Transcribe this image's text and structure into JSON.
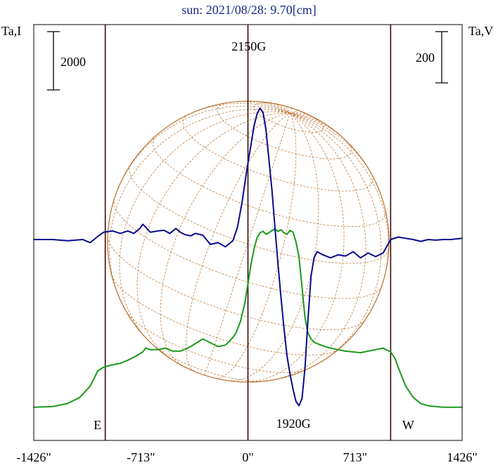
{
  "chart_data": {
    "type": "line",
    "title": "sun: 2021/08/28: 9.70[cm]",
    "left_axis_label": "Ta,I",
    "right_axis_label": "Ta,V",
    "left_scale_bar": "2000",
    "right_scale_bar": "200",
    "x_unit": "arcsec",
    "xlim": [
      -1426,
      1426
    ],
    "x_ticks": [
      {
        "value": -1426,
        "label": "-1426\""
      },
      {
        "value": -713,
        "label": "-713\""
      },
      {
        "value": 0,
        "label": "0\""
      },
      {
        "value": 713,
        "label": "713\""
      },
      {
        "value": 1426,
        "label": "1426\""
      }
    ],
    "vertical_markers": [
      -950,
      0,
      950
    ],
    "limb_labels": {
      "east": "E",
      "west": "W"
    },
    "annotations": [
      {
        "text": "2150G",
        "x": 90,
        "position": "above"
      },
      {
        "text": "1920G",
        "x": 340,
        "position": "below"
      }
    ],
    "colors": {
      "stokes_i": "#1a9a1a",
      "stokes_v": "#0a0a8c",
      "disk": "#b5651d",
      "frame": "#000000",
      "markers": "#3a0a0a",
      "title": "#1a2a8c"
    },
    "series": [
      {
        "name": "I",
        "color": "#1a9a1a",
        "x": [
          -1426,
          -1300,
          -1200,
          -1120,
          -1050,
          -1000,
          -960,
          -940,
          -900,
          -850,
          -800,
          -750,
          -700,
          -680,
          -650,
          -600,
          -550,
          -500,
          -450,
          -400,
          -350,
          -300,
          -250,
          -200,
          -150,
          -100,
          -80,
          -50,
          -20,
          0,
          20,
          40,
          60,
          80,
          100,
          120,
          140,
          160,
          180,
          200,
          220,
          240,
          260,
          280,
          300,
          320,
          340,
          360,
          380,
          400,
          420,
          440,
          460,
          500,
          550,
          600,
          650,
          700,
          750,
          800,
          850,
          900,
          950,
          980,
          1000,
          1050,
          1100,
          1150,
          1200,
          1250,
          1300,
          1350,
          1426
        ],
        "y": [
          0.02,
          0.03,
          0.07,
          0.15,
          0.3,
          0.5,
          0.55,
          0.56,
          0.58,
          0.6,
          0.64,
          0.69,
          0.75,
          0.8,
          0.78,
          0.78,
          0.8,
          0.76,
          0.76,
          0.8,
          0.86,
          0.92,
          0.87,
          0.82,
          0.84,
          0.94,
          1.0,
          1.15,
          1.4,
          1.65,
          1.9,
          2.1,
          2.25,
          2.32,
          2.34,
          2.3,
          2.32,
          2.35,
          2.37,
          2.34,
          2.36,
          2.32,
          2.3,
          2.35,
          2.33,
          2.2,
          2.0,
          1.6,
          1.2,
          1.0,
          0.92,
          0.88,
          0.86,
          0.83,
          0.8,
          0.78,
          0.76,
          0.75,
          0.74,
          0.76,
          0.78,
          0.8,
          0.75,
          0.66,
          0.55,
          0.3,
          0.15,
          0.07,
          0.04,
          0.03,
          0.02,
          0.02,
          0.02
        ]
      },
      {
        "name": "V",
        "color": "#0a0a8c",
        "x": [
          -1426,
          -1300,
          -1200,
          -1100,
          -1050,
          -1000,
          -960,
          -900,
          -850,
          -800,
          -760,
          -720,
          -700,
          -680,
          -650,
          -600,
          -560,
          -520,
          -480,
          -450,
          -420,
          -380,
          -350,
          -300,
          -250,
          -200,
          -150,
          -100,
          -70,
          -40,
          -10,
          20,
          40,
          60,
          80,
          100,
          120,
          140,
          160,
          180,
          200,
          220,
          240,
          260,
          280,
          300,
          320,
          340,
          360,
          380,
          400,
          420,
          440,
          460,
          500,
          550,
          600,
          650,
          700,
          750,
          800,
          850,
          900,
          950,
          1000,
          1050,
          1100,
          1150,
          1200,
          1250,
          1300,
          1350,
          1426
        ],
        "y": [
          0.0,
          0.0,
          -0.02,
          0.0,
          -0.05,
          0.05,
          0.12,
          0.14,
          0.1,
          0.14,
          0.1,
          0.18,
          0.25,
          0.2,
          0.12,
          0.14,
          0.15,
          0.1,
          0.18,
          0.12,
          0.08,
          0.06,
          0.1,
          0.07,
          -0.08,
          -0.05,
          -0.12,
          -0.02,
          0.2,
          0.6,
          1.1,
          1.55,
          1.85,
          2.05,
          2.15,
          2.08,
          1.8,
          1.3,
          0.8,
          0.2,
          -0.4,
          -0.95,
          -1.45,
          -1.9,
          -2.2,
          -2.45,
          -2.65,
          -2.72,
          -2.6,
          -2.1,
          -1.3,
          -0.6,
          -0.3,
          -0.2,
          -0.25,
          -0.3,
          -0.25,
          -0.27,
          -0.2,
          -0.3,
          -0.22,
          -0.28,
          -0.22,
          0.0,
          0.04,
          0.02,
          0.0,
          -0.03,
          0.0,
          -0.01,
          0.0,
          0.0,
          0.02
        ]
      }
    ],
    "i_range": [
      0,
      2.6
    ],
    "v_range": [
      -3.5,
      3.0
    ]
  }
}
